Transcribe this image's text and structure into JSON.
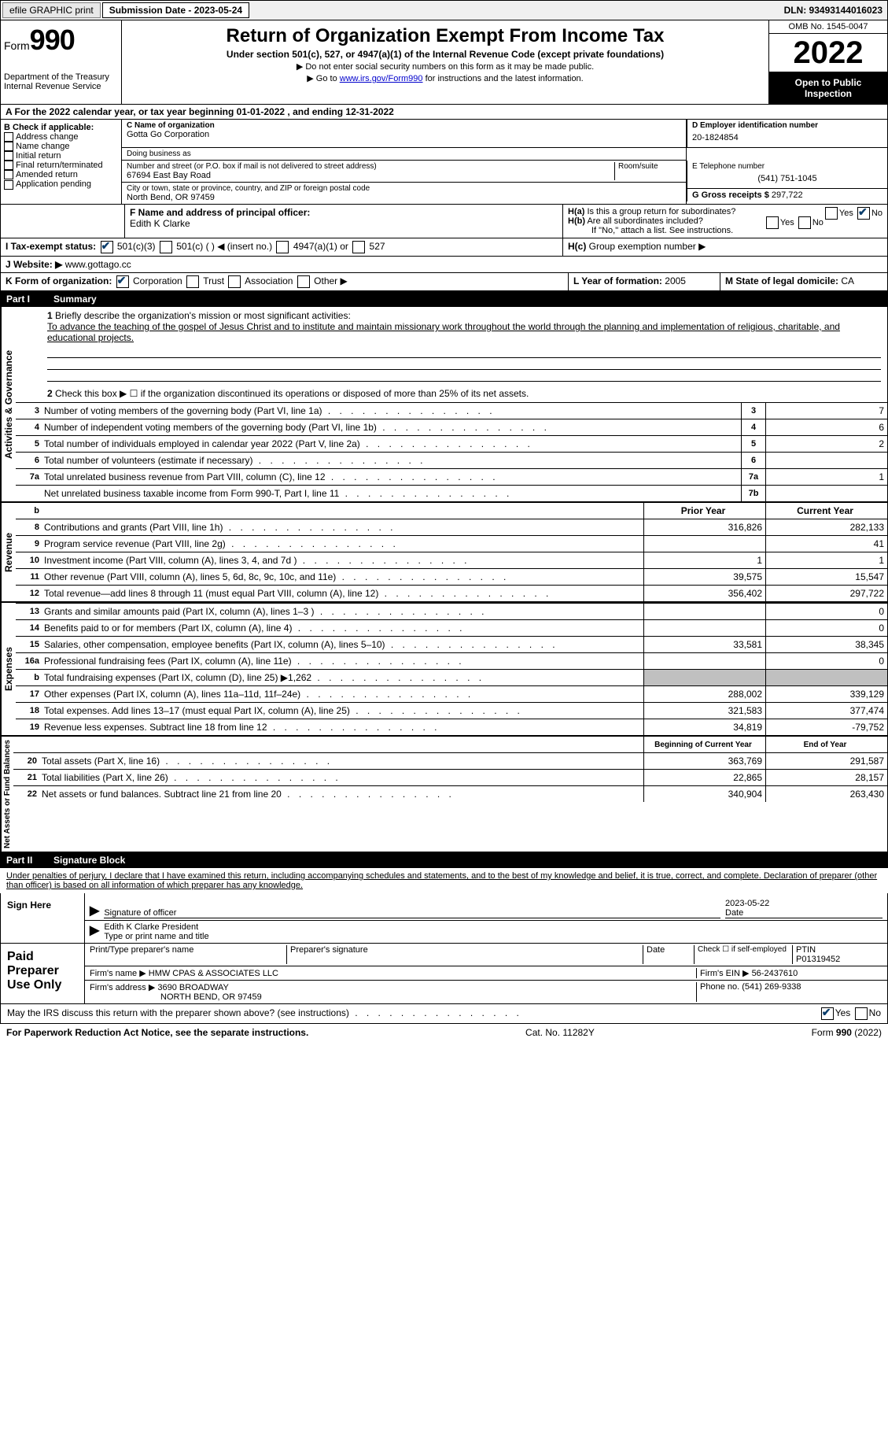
{
  "top": {
    "efile": "efile GRAPHIC print",
    "submission_label": "Submission Date - 2023-05-24",
    "dln": "DLN: 93493144016023"
  },
  "header": {
    "form_word": "Form",
    "form_num": "990",
    "title": "Return of Organization Exempt From Income Tax",
    "sub1": "Under section 501(c), 527, or 4947(a)(1) of the Internal Revenue Code (except private foundations)",
    "sub2": "▶ Do not enter social security numbers on this form as it may be made public.",
    "sub3_pre": "▶ Go to ",
    "sub3_link": "www.irs.gov/Form990",
    "sub3_post": " for instructions and the latest information.",
    "dept": "Department of the Treasury\nInternal Revenue Service",
    "omb": "OMB No. 1545-0047",
    "year": "2022",
    "open": "Open to Public Inspection"
  },
  "a": {
    "text_pre": "A For the 2022 calendar year, or tax year beginning ",
    "begin": "01-01-2022",
    "mid": " , and ending ",
    "end": "12-31-2022"
  },
  "b": {
    "label": "B Check if applicable:",
    "opts": [
      "Address change",
      "Name change",
      "Initial return",
      "Final return/terminated",
      "Amended return",
      "Application pending"
    ]
  },
  "c": {
    "name_label": "C Name of organization",
    "name": "Gotta Go Corporation",
    "dba_label": "Doing business as",
    "addr_label": "Number and street (or P.O. box if mail is not delivered to street address)",
    "room_label": "Room/suite",
    "addr": "67694 East Bay Road",
    "city_label": "City or town, state or province, country, and ZIP or foreign postal code",
    "city": "North Bend, OR  97459"
  },
  "d": {
    "ein_label": "D Employer identification number",
    "ein": "20-1824854",
    "phone_label": "E Telephone number",
    "phone": "(541) 751-1045",
    "gross_label": "G Gross receipts $",
    "gross": "297,722"
  },
  "f": {
    "label": "F Name and address of principal officer:",
    "name": "Edith K Clarke"
  },
  "h": {
    "a_label": "H(a) Is this a group return for subordinates?",
    "b_label": "H(b) Are all subordinates included?",
    "b_note": "If \"No,\" attach a list. See instructions.",
    "c_label": "H(c) Group exemption number ▶"
  },
  "i": {
    "label": "I Tax-exempt status:",
    "opts": [
      "501(c)(3)",
      "501(c) (  ) ◀ (insert no.)",
      "4947(a)(1) or",
      "527"
    ]
  },
  "j": {
    "label": "J Website: ▶",
    "val": "www.gottago.cc"
  },
  "k": {
    "label": "K Form of organization:",
    "opts": [
      "Corporation",
      "Trust",
      "Association",
      "Other ▶"
    ],
    "l_label": "L Year of formation:",
    "l_val": "2005",
    "m_label": "M State of legal domicile:",
    "m_val": "CA"
  },
  "part1": {
    "title": "Part I",
    "name": "Summary",
    "q1": "Briefly describe the organization's mission or most significant activities:",
    "mission": "To advance the teaching of the gospel of Jesus Christ and to institute and maintain missionary work throughout the world through the planning and implementation of religious, charitable, and educational projects.",
    "q2": "Check this box ▶ ☐ if the organization discontinued its operations or disposed of more than 25% of its net assets.",
    "vert1": "Activities & Governance",
    "vert2": "Revenue",
    "vert3": "Expenses",
    "vert4": "Net Assets or Fund Balances",
    "rows_gov": [
      {
        "n": "3",
        "d": "Number of voting members of the governing body (Part VI, line 1a)",
        "box": "3",
        "v": "7"
      },
      {
        "n": "4",
        "d": "Number of independent voting members of the governing body (Part VI, line 1b)",
        "box": "4",
        "v": "6"
      },
      {
        "n": "5",
        "d": "Total number of individuals employed in calendar year 2022 (Part V, line 2a)",
        "box": "5",
        "v": "2"
      },
      {
        "n": "6",
        "d": "Total number of volunteers (estimate if necessary)",
        "box": "6",
        "v": ""
      },
      {
        "n": "7a",
        "d": "Total unrelated business revenue from Part VIII, column (C), line 12",
        "box": "7a",
        "v": "1"
      },
      {
        "n": "",
        "d": "Net unrelated business taxable income from Form 990-T, Part I, line 11",
        "box": "7b",
        "v": ""
      }
    ],
    "col_prior": "Prior Year",
    "col_current": "Current Year",
    "rows_rev": [
      {
        "n": "8",
        "d": "Contributions and grants (Part VIII, line 1h)",
        "p": "316,826",
        "c": "282,133"
      },
      {
        "n": "9",
        "d": "Program service revenue (Part VIII, line 2g)",
        "p": "",
        "c": "41"
      },
      {
        "n": "10",
        "d": "Investment income (Part VIII, column (A), lines 3, 4, and 7d )",
        "p": "1",
        "c": "1"
      },
      {
        "n": "11",
        "d": "Other revenue (Part VIII, column (A), lines 5, 6d, 8c, 9c, 10c, and 11e)",
        "p": "39,575",
        "c": "15,547"
      },
      {
        "n": "12",
        "d": "Total revenue—add lines 8 through 11 (must equal Part VIII, column (A), line 12)",
        "p": "356,402",
        "c": "297,722"
      }
    ],
    "rows_exp": [
      {
        "n": "13",
        "d": "Grants and similar amounts paid (Part IX, column (A), lines 1–3 )",
        "p": "",
        "c": "0"
      },
      {
        "n": "14",
        "d": "Benefits paid to or for members (Part IX, column (A), line 4)",
        "p": "",
        "c": "0"
      },
      {
        "n": "15",
        "d": "Salaries, other compensation, employee benefits (Part IX, column (A), lines 5–10)",
        "p": "33,581",
        "c": "38,345"
      },
      {
        "n": "16a",
        "d": "Professional fundraising fees (Part IX, column (A), line 11e)",
        "p": "",
        "c": "0"
      },
      {
        "n": "b",
        "d": "Total fundraising expenses (Part IX, column (D), line 25) ▶1,262",
        "p": "gray",
        "c": "gray"
      },
      {
        "n": "17",
        "d": "Other expenses (Part IX, column (A), lines 11a–11d, 11f–24e)",
        "p": "288,002",
        "c": "339,129"
      },
      {
        "n": "18",
        "d": "Total expenses. Add lines 13–17 (must equal Part IX, column (A), line 25)",
        "p": "321,583",
        "c": "377,474"
      },
      {
        "n": "19",
        "d": "Revenue less expenses. Subtract line 18 from line 12",
        "p": "34,819",
        "c": "-79,752"
      }
    ],
    "col_begin": "Beginning of Current Year",
    "col_end": "End of Year",
    "rows_net": [
      {
        "n": "20",
        "d": "Total assets (Part X, line 16)",
        "p": "363,769",
        "c": "291,587"
      },
      {
        "n": "21",
        "d": "Total liabilities (Part X, line 26)",
        "p": "22,865",
        "c": "28,157"
      },
      {
        "n": "22",
        "d": "Net assets or fund balances. Subtract line 21 from line 20",
        "p": "340,904",
        "c": "263,430"
      }
    ]
  },
  "part2": {
    "title": "Part II",
    "name": "Signature Block",
    "perjury": "Under penalties of perjury, I declare that I have examined this return, including accompanying schedules and statements, and to the best of my knowledge and belief, it is true, correct, and complete. Declaration of preparer (other than officer) is based on all information of which preparer has any knowledge.",
    "sign_here": "Sign Here",
    "sig_of_officer": "Signature of officer",
    "date": "Date",
    "sig_date": "2023-05-22",
    "officer_name": "Edith K Clarke  President",
    "type_name": "Type or print name and title",
    "paid": "Paid Preparer Use Only",
    "print_name": "Print/Type preparer's name",
    "prep_sig": "Preparer's signature",
    "check_self": "Check ☐ if self-employed",
    "ptin_label": "PTIN",
    "ptin": "P01319452",
    "firm_name_label": "Firm's name ▶",
    "firm_name": "HMW CPAS & ASSOCIATES LLC",
    "firm_ein_label": "Firm's EIN ▶",
    "firm_ein": "56-2437610",
    "firm_addr_label": "Firm's address ▶",
    "firm_addr1": "3690 BROADWAY",
    "firm_addr2": "NORTH BEND, OR  97459",
    "firm_phone_label": "Phone no.",
    "firm_phone": "(541) 269-9338",
    "discuss": "May the IRS discuss this return with the preparer shown above? (see instructions)",
    "yes": "Yes",
    "no": "No"
  },
  "footer": {
    "left": "For Paperwork Reduction Act Notice, see the separate instructions.",
    "mid": "Cat. No. 11282Y",
    "right": "Form 990 (2022)"
  }
}
